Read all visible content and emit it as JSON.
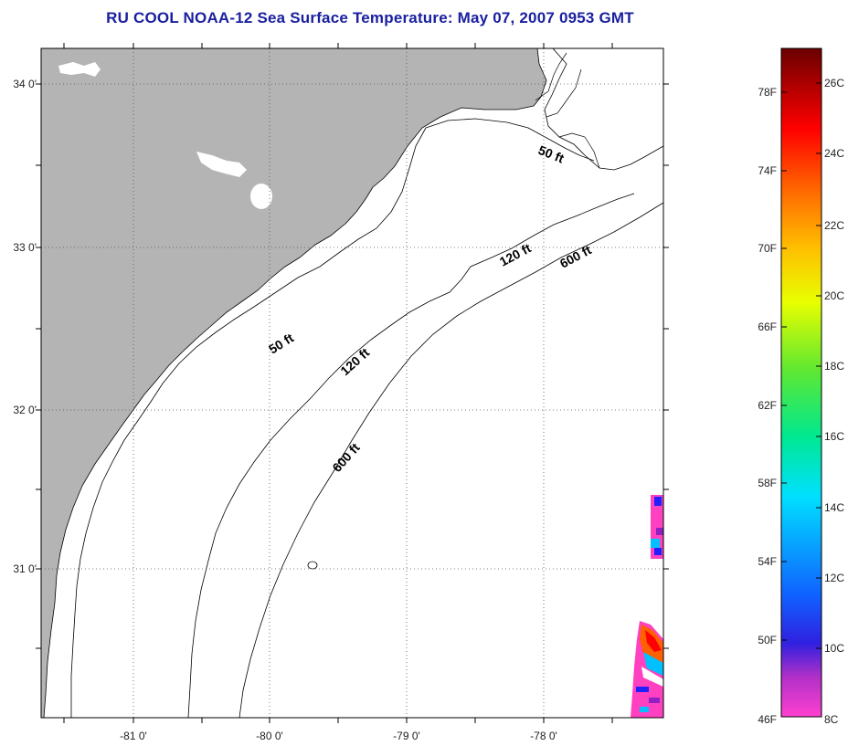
{
  "title": "RU COOL  NOAA-12  Sea Surface Temperature:  May 07, 2007 0953 GMT",
  "map": {
    "lat_labels": [
      "34 0'",
      "33 0'",
      "32 0'",
      "31 0'"
    ],
    "lon_labels": [
      "-81 0'",
      "-80 0'",
      "-79 0'",
      "-78 0'"
    ],
    "contour_labels": [
      "50 ft",
      "120 ft",
      "600 ft",
      "50 ft",
      "120 ft",
      "600 ft"
    ],
    "colors": {
      "land": "#b4b4b4",
      "ocean": "#ffffff",
      "grid": "#555555",
      "coast": "#000000"
    }
  },
  "colorbar": {
    "fahrenheit_labels": [
      "78F",
      "74F",
      "70F",
      "66F",
      "62F",
      "58F",
      "54F",
      "50F",
      "46F"
    ],
    "celsius_labels": [
      "26C",
      "24C",
      "22C",
      "20C",
      "18C",
      "16C",
      "14C",
      "12C",
      "10C",
      "8C"
    ],
    "colors": [
      "#ff40c0",
      "#9020c0",
      "#2020ff",
      "#00c0ff",
      "#00e0a0",
      "#40e040",
      "#e0ff00",
      "#ffc000",
      "#ff6000",
      "#ff0000",
      "#a00000",
      "#700000"
    ]
  }
}
